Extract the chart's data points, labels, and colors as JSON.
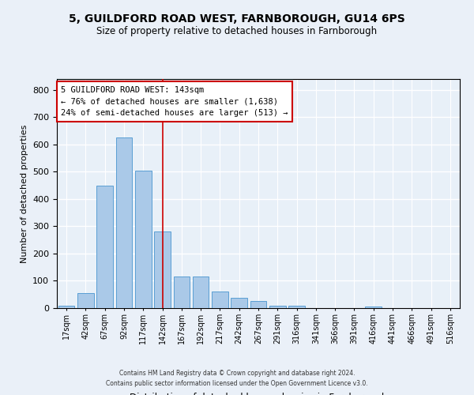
{
  "title1": "5, GUILDFORD ROAD WEST, FARNBOROUGH, GU14 6PS",
  "title2": "Size of property relative to detached houses in Farnborough",
  "xlabel": "Distribution of detached houses by size in Farnborough",
  "ylabel": "Number of detached properties",
  "bar_labels": [
    "17sqm",
    "42sqm",
    "67sqm",
    "92sqm",
    "117sqm",
    "142sqm",
    "167sqm",
    "192sqm",
    "217sqm",
    "242sqm",
    "267sqm",
    "291sqm",
    "316sqm",
    "341sqm",
    "366sqm",
    "391sqm",
    "416sqm",
    "441sqm",
    "466sqm",
    "491sqm",
    "516sqm"
  ],
  "bar_values": [
    10,
    55,
    450,
    625,
    505,
    280,
    115,
    115,
    60,
    38,
    25,
    10,
    8,
    0,
    0,
    0,
    5,
    0,
    0,
    0,
    0
  ],
  "bar_color": "#aac9e8",
  "bar_edge_color": "#5a9fd4",
  "background_color": "#eaf0f8",
  "plot_bg_color": "#e8f0f8",
  "grid_color": "#ffffff",
  "vline_x": 5,
  "vline_color": "#cc0000",
  "annotation_text": "5 GUILDFORD ROAD WEST: 143sqm\n← 76% of detached houses are smaller (1,638)\n24% of semi-detached houses are larger (513) →",
  "annotation_box_color": "#ffffff",
  "annotation_box_edge": "#cc0000",
  "ylim": [
    0,
    840
  ],
  "footer1": "Contains HM Land Registry data © Crown copyright and database right 2024.",
  "footer2": "Contains public sector information licensed under the Open Government Licence v3.0."
}
